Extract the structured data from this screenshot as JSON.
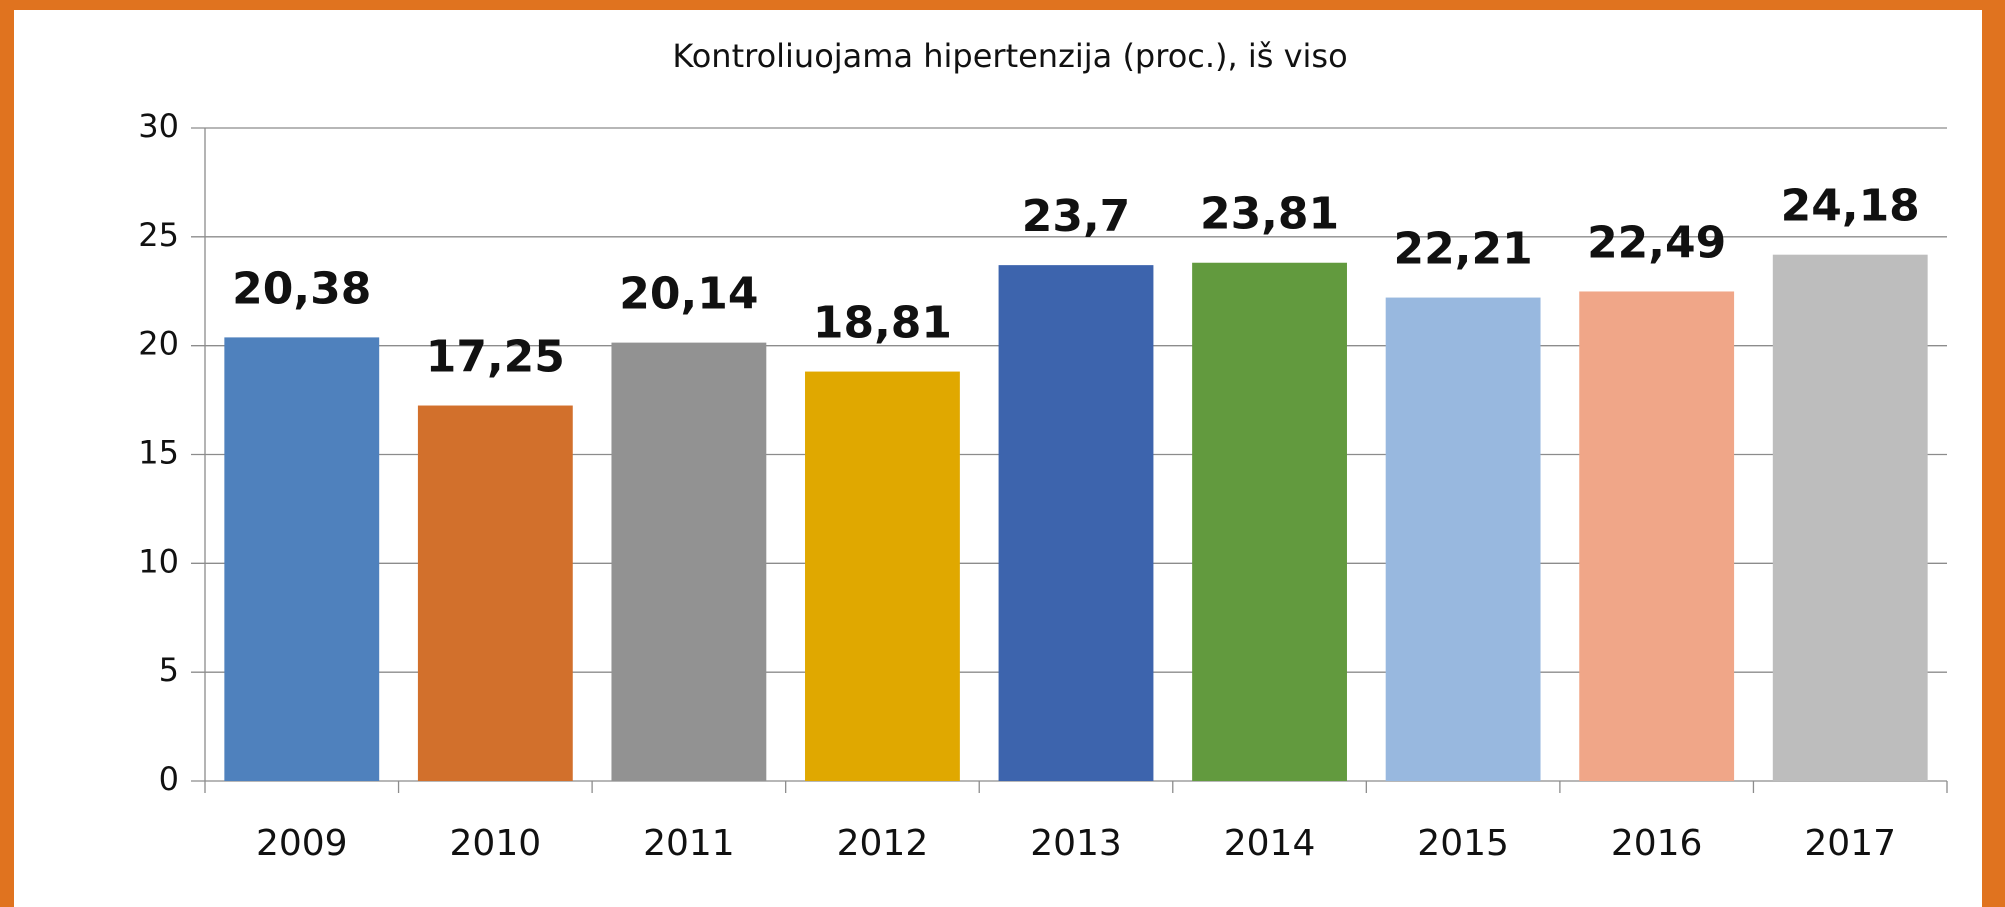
{
  "chart_data": {
    "type": "bar",
    "title": "Kontroliuojama hipertenzija (proc.), iš viso",
    "categories": [
      "2009",
      "2010",
      "2011",
      "2012",
      "2013",
      "2014",
      "2015",
      "2016",
      "2017"
    ],
    "values": [
      20.38,
      17.25,
      20.14,
      18.81,
      23.7,
      23.81,
      22.21,
      22.49,
      24.18
    ],
    "value_labels": [
      "20,38",
      "17,25",
      "20,14",
      "18,81",
      "23,7",
      "23,81",
      "22,21",
      "22,49",
      "24,18"
    ],
    "colors": [
      "#4f81bd",
      "#d2702c",
      "#929292",
      "#e0a800",
      "#3d64ad",
      "#629a3e",
      "#98b8df",
      "#f0a688",
      "#bdbdbd"
    ],
    "ylim": [
      0,
      30
    ],
    "yticks": [
      0,
      5,
      10,
      15,
      20,
      25,
      30
    ],
    "grid": true
  }
}
